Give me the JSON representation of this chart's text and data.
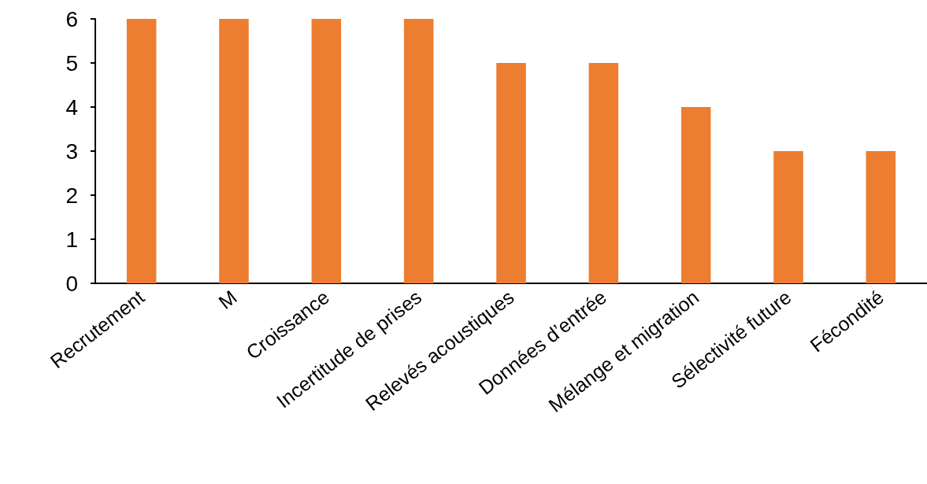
{
  "chart_data": {
    "type": "bar",
    "categories": [
      "Recrutement",
      "M",
      "Croissance",
      "Incertitude de prises",
      "Relevés acoustiques",
      "Données d’entrée",
      "Mélange et migration",
      "Sélectivité future",
      "Fécondité"
    ],
    "values": [
      6,
      6,
      6,
      6,
      5,
      5,
      4,
      3,
      3
    ],
    "color": "#ed7d31",
    "ylim": [
      0,
      6
    ],
    "yticks": [
      0,
      1,
      2,
      3,
      4,
      5,
      6
    ],
    "grid": false
  }
}
